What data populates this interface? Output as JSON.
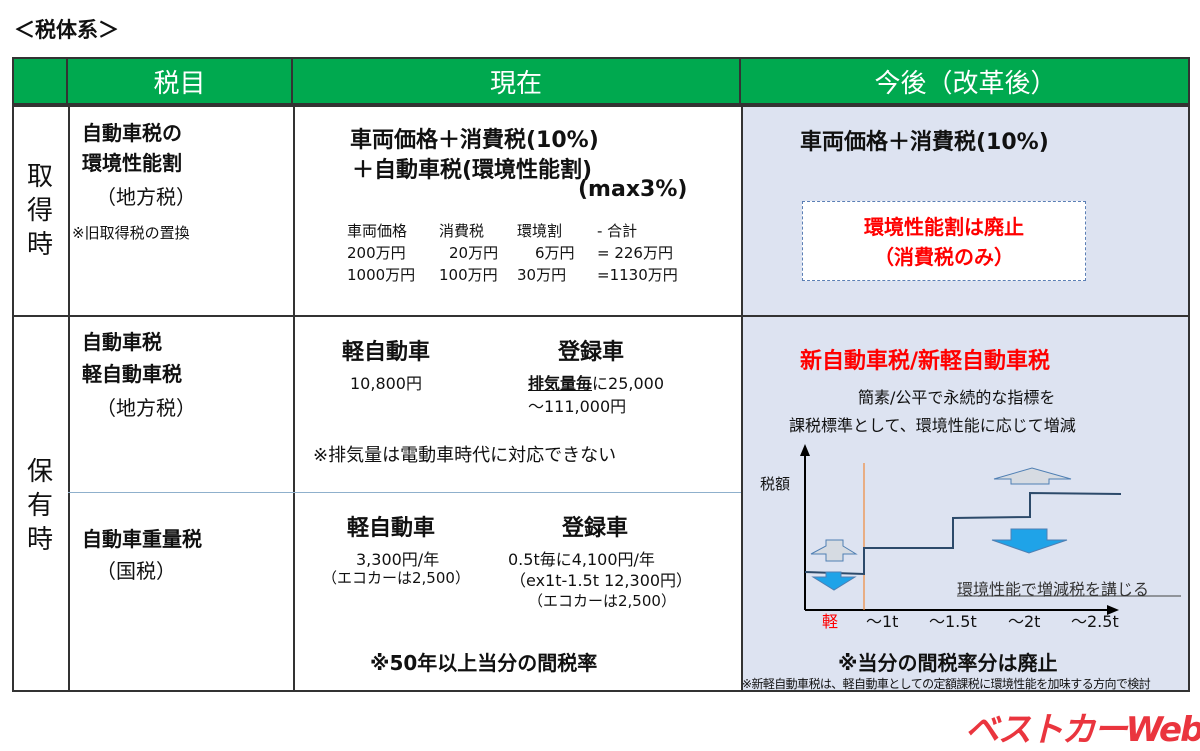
{
  "title": "＜税体系＞",
  "header": {
    "col1": "税目",
    "col2": "現在",
    "col3": "今後（改革後）"
  },
  "acquisition": {
    "row_label": [
      "取",
      "得",
      "時"
    ],
    "tax_name": [
      "自動車税の",
      "環境性能割",
      "（地方税）"
    ],
    "note": "※旧取得税の置換",
    "current": {
      "line1": "車両価格＋消費税(10%)",
      "line2": "＋自動車税(環境性能割)",
      "line3": "(max3%)",
      "table": [
        [
          "車両価格",
          "消費税",
          "環境割",
          "- 合計"
        ],
        [
          "200万円",
          "20万円",
          "6万円",
          "=  226万円"
        ],
        [
          "1000万円",
          "100万円",
          "30万円",
          "=1130万円"
        ]
      ]
    },
    "future": {
      "line1": "車両価格＋消費税(10%)",
      "box1": "環境性能割は廃止",
      "box2": "（消費税のみ）"
    }
  },
  "ownership": {
    "row_label": [
      "保",
      "有",
      "時"
    ],
    "tax1_name": [
      "自動車税",
      "軽自動車税",
      "（地方税）"
    ],
    "tax2_name": [
      "自動車重量税",
      "（国税）"
    ],
    "current1": {
      "kei": "軽自動車",
      "kei_amount": "10,800円",
      "reg": "登録車",
      "reg_line1_bold": "排気量毎",
      "reg_line1": "に25,000",
      "reg_line2": "～111,000円",
      "note": "※排気量は電動車時代に対応できない"
    },
    "current2": {
      "kei": "軽自動車",
      "kei_amount": "3,300円/年",
      "kei_eco": "（エコカーは2,500）",
      "reg": "登録車",
      "reg_line1": "0.5t毎に4,100円/年",
      "reg_line2": "（ex1t-1.5t 12,300円）",
      "reg_eco": "（エコカーは2,500）",
      "note": "※50年以上当分の間税率"
    },
    "future": {
      "title": "新自動車税/新軽自動車税",
      "desc1": "簡素/公平で永続的な指標を",
      "desc2": "課税標準として、環境性能に応じて増減",
      "chart_ylabel": "税額",
      "chart_xticks": [
        "軽",
        "～1t",
        "～1.5t",
        "～2t",
        "～2.5t"
      ],
      "chart_annotation": "環境性能で増減税を講じる",
      "note": "※当分の間税率分は廃止",
      "footnote": "※新軽自動車税は、軽自動車としての定額課税に環境性能を加味する方向で検討"
    }
  },
  "colors": {
    "header": "#00a94f",
    "future_bg": "#dde3f1",
    "red": "#ff0000",
    "arrow_blue": "#1fa3e8"
  },
  "watermark": "ベストカーWeb"
}
